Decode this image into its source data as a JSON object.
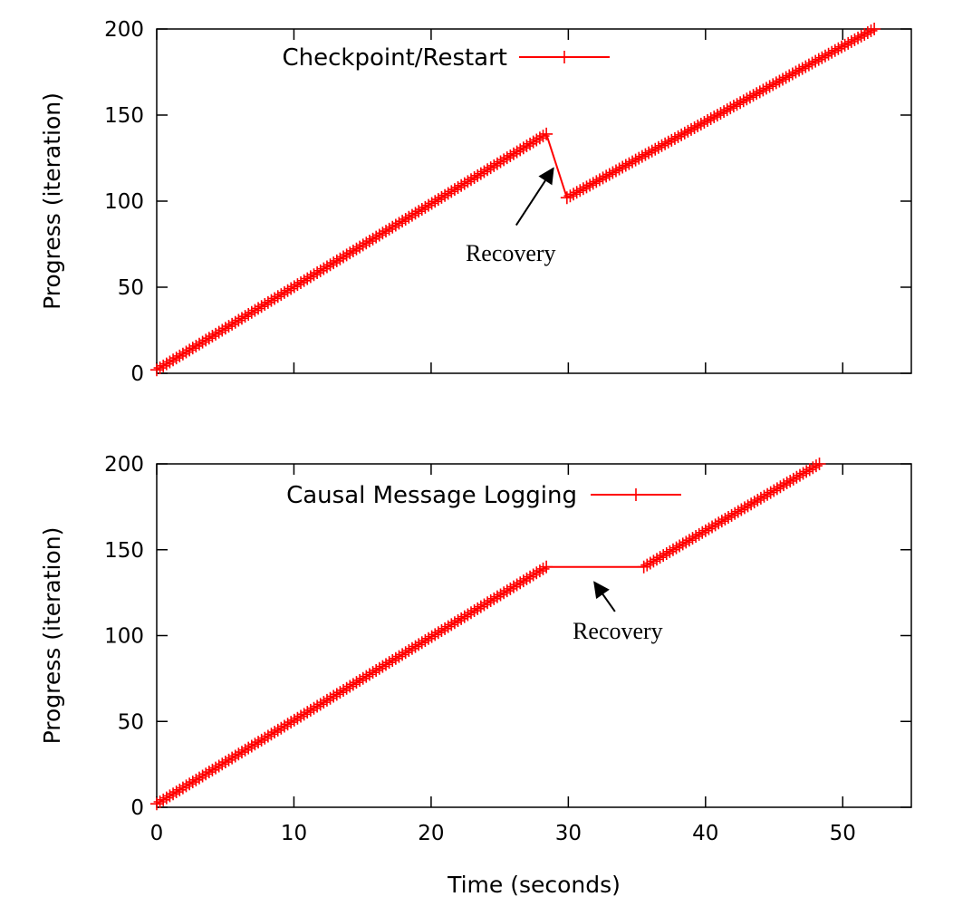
{
  "chart_data": [
    {
      "type": "line",
      "title": "",
      "xlabel": "",
      "ylabel": "Progress (iteration)",
      "xlim": [
        0,
        55
      ],
      "ylim": [
        0,
        200
      ],
      "xticks": [
        0,
        10,
        20,
        30,
        40,
        50
      ],
      "yticks": [
        0,
        50,
        100,
        150,
        200
      ],
      "show_x_tick_labels": false,
      "grid": false,
      "legend": "top-left",
      "series": [
        {
          "name": "Checkpoint/Restart",
          "color": "#ff0000",
          "marker": "plus",
          "segments": [
            {
              "x_start": 0,
              "x_end": 28.4,
              "y_start": 2,
              "y_end": 139
            },
            {
              "x_start": 28.4,
              "x_end": 29.9,
              "y_start": 139,
              "y_end": 102,
              "marker": "none"
            },
            {
              "x_start": 29.9,
              "x_end": 52.3,
              "y_start": 102,
              "y_end": 200
            }
          ]
        }
      ],
      "annotations": [
        {
          "text": "Recovery",
          "text_x": 25.8,
          "text_y": 70,
          "arrow_from": [
            26.2,
            86
          ],
          "arrow_to": [
            28.9,
            119
          ]
        }
      ]
    },
    {
      "type": "line",
      "title": "",
      "xlabel": "Time (seconds)",
      "ylabel": "Progress (iteration)",
      "xlim": [
        0,
        55
      ],
      "ylim": [
        0,
        200
      ],
      "xticks": [
        0,
        10,
        20,
        30,
        40,
        50
      ],
      "yticks": [
        0,
        50,
        100,
        150,
        200
      ],
      "show_x_tick_labels": true,
      "grid": false,
      "legend": "top-left",
      "series": [
        {
          "name": "Causal Message Logging",
          "color": "#ff0000",
          "marker": "plus",
          "segments": [
            {
              "x_start": 0,
              "x_end": 28.4,
              "y_start": 2,
              "y_end": 140
            },
            {
              "x_start": 28.4,
              "x_end": 35.5,
              "y_start": 140,
              "y_end": 140,
              "marker": "none"
            },
            {
              "x_start": 35.5,
              "x_end": 48.3,
              "y_start": 140,
              "y_end": 200
            }
          ]
        }
      ],
      "annotations": [
        {
          "text": "Recovery",
          "text_x": 33.6,
          "text_y": 103,
          "arrow_from": [
            33.4,
            114
          ],
          "arrow_to": [
            31.9,
            131
          ]
        }
      ]
    }
  ]
}
